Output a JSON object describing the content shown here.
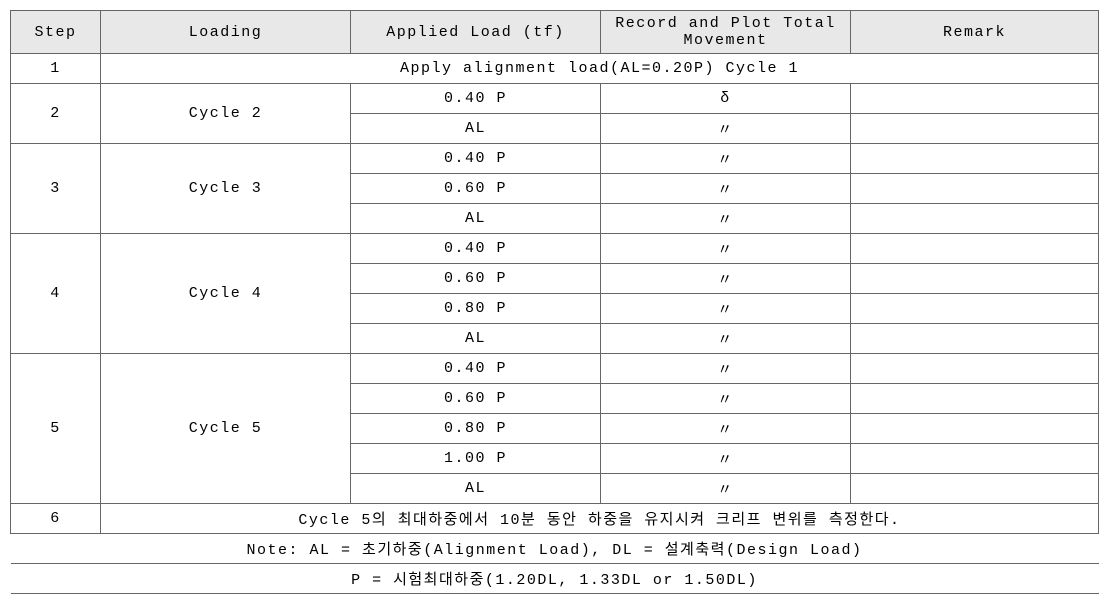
{
  "columns": {
    "step": "Step",
    "loading": "Loading",
    "applied": "Applied Load (tf)",
    "record": "Record and Plot Total Movement",
    "remark": "Remark"
  },
  "ditto": "〃",
  "delta": "δ",
  "step1": {
    "num": "1",
    "text": "Apply alignment load(AL=0.20P) Cycle 1"
  },
  "step2": {
    "num": "2",
    "cycle": "Cycle 2",
    "r1_applied": "0.40 P",
    "r1_record": "δ",
    "r2_applied": "AL",
    "r2_record": "〃"
  },
  "step3": {
    "num": "3",
    "cycle": "Cycle 3",
    "r1_applied": "0.40 P",
    "r1_record": "〃",
    "r2_applied": "0.60 P",
    "r2_record": "〃",
    "r3_applied": "AL",
    "r3_record": "〃"
  },
  "step4": {
    "num": "4",
    "cycle": "Cycle 4",
    "r1_applied": "0.40 P",
    "r1_record": "〃",
    "r2_applied": "0.60 P",
    "r2_record": "〃",
    "r3_applied": "0.80 P",
    "r3_record": "〃",
    "r4_applied": "AL",
    "r4_record": "〃"
  },
  "step5": {
    "num": "5",
    "cycle": "Cycle 5",
    "r1_applied": "0.40 P",
    "r1_record": "〃",
    "r2_applied": "0.60 P",
    "r2_record": "〃",
    "r3_applied": "0.80 P",
    "r3_record": "〃",
    "r4_applied": "1.00 P",
    "r4_record": "〃",
    "r5_applied": "AL",
    "r5_record": "〃"
  },
  "step6": {
    "num": "6",
    "text": "Cycle 5의 최대하중에서 10분 동안 하중을 유지시켜 크리프 변위를 측정한다."
  },
  "note1": "Note: AL = 초기하중(Alignment Load), DL = 설계축력(Design Load)",
  "note2": "P = 시험최대하중(1.20DL, 1.33DL or 1.50DL)"
}
